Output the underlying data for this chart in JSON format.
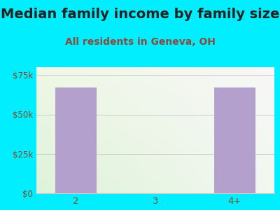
{
  "title": "Median family income by family size",
  "subtitle": "All residents in Geneva, OH",
  "categories": [
    "2",
    "3",
    "4+"
  ],
  "values": [
    67000,
    0,
    67000
  ],
  "bar_color": "#b3a0cc",
  "background_color": "#00eeff",
  "plot_bg_topleft": "#e8f0e0",
  "plot_bg_topright": "#f8f8f8",
  "plot_bg_bottom": "#d8ecd8",
  "title_color": "#222222",
  "subtitle_color": "#8b4a3a",
  "tick_label_color": "#7a4a2a",
  "grid_color": "#cccccc",
  "ylim": [
    0,
    80000
  ],
  "yticks": [
    0,
    25000,
    50000,
    75000
  ],
  "ytick_labels": [
    "$0",
    "$25k",
    "$50k",
    "$75k"
  ],
  "title_fontsize": 14,
  "subtitle_fontsize": 10
}
